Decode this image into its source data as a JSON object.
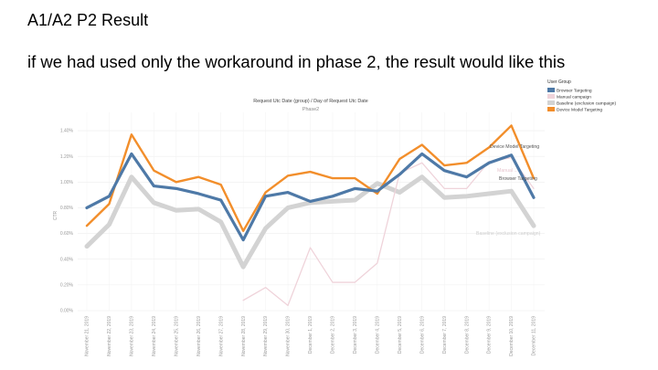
{
  "slide": {
    "title": "A1/A2 P2 Result",
    "subtitle": "if we had used only the workaround in phase 2, the result would like this"
  },
  "chart_data": {
    "type": "line",
    "title": "Request Utc Date (group) / Day of Request Utc Date",
    "subtitle": "Phase2",
    "ylabel": "CTR",
    "ylim": [
      0,
      1.5
    ],
    "yticks": [
      "0.00%",
      "0.20%",
      "0.40%",
      "0.60%",
      "0.80%",
      "1.00%",
      "1.20%",
      "1.40%"
    ],
    "grid": true,
    "legend_position": "top-right",
    "legend_title": "User Group",
    "categories": [
      "November 21, 2019",
      "November 22, 2019",
      "November 23, 2019",
      "November 24, 2019",
      "November 25, 2019",
      "November 26, 2019",
      "November 27, 2019",
      "November 28, 2019",
      "November 29, 2019",
      "November 30, 2019",
      "December 1, 2019",
      "December 2, 2019",
      "December 3, 2019",
      "December 4, 2019",
      "December 5, 2019",
      "December 6, 2019",
      "December 7, 2019",
      "December 8, 2019",
      "December 9, 2019",
      "December 10, 2019",
      "December 11, 2019"
    ],
    "series": [
      {
        "name": "Baseline (exclusion campaign)",
        "color": "#d3d3d3",
        "values": [
          0.5,
          0.67,
          1.04,
          0.84,
          0.78,
          0.79,
          0.69,
          0.34,
          0.64,
          0.8,
          0.84,
          0.85,
          0.86,
          0.99,
          0.92,
          1.04,
          0.88,
          0.89,
          0.91,
          0.93,
          0.66
        ]
      },
      {
        "name": "Manual campaign",
        "color": "#efd3da",
        "values": [
          null,
          null,
          null,
          null,
          null,
          null,
          null,
          0.08,
          0.18,
          0.04,
          0.49,
          0.22,
          0.22,
          0.37,
          1.07,
          1.15,
          0.95,
          0.95,
          1.16,
          1.19,
          0.95
        ]
      },
      {
        "name": "Device Model Targeting",
        "color": "#f28e2b",
        "values": [
          0.66,
          0.83,
          1.37,
          1.09,
          1.0,
          1.04,
          0.98,
          0.62,
          0.92,
          1.05,
          1.08,
          1.03,
          1.03,
          0.91,
          1.18,
          1.29,
          1.13,
          1.15,
          1.27,
          1.44,
          1.03
        ]
      },
      {
        "name": "Browser Targeting",
        "color": "#4e79a7",
        "values": [
          0.8,
          0.89,
          1.22,
          0.97,
          0.95,
          0.91,
          0.86,
          0.55,
          0.89,
          0.92,
          0.85,
          0.89,
          0.95,
          0.93,
          1.06,
          1.22,
          1.09,
          1.04,
          1.15,
          1.21,
          0.88
        ]
      }
    ],
    "line_labels": {
      "device": "Device Model Targeting",
      "browser": "Browser Targeting",
      "manual": "Manual ...",
      "baseline": "Baseline (exclusion campaign)"
    },
    "legend": [
      {
        "label": "Browser Targeting",
        "color": "#4e79a7"
      },
      {
        "label": "Manual campaign",
        "color": "#efd3da"
      },
      {
        "label": "Baseline (exclusion campaign)",
        "color": "#d3d3d3"
      },
      {
        "label": "Device Model Targeting",
        "color": "#f28e2b"
      }
    ]
  }
}
